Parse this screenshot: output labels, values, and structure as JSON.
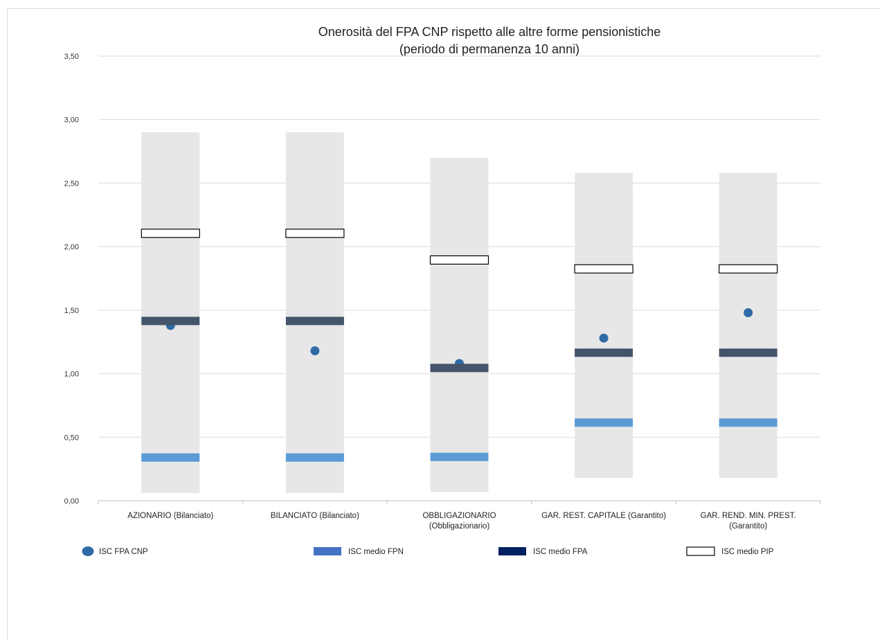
{
  "chart_data": {
    "type": "range-marker",
    "title": "Onerosità del FPA CNP rispetto alle altre forme pensionistiche",
    "subtitle": "(periodo di permanenza 10 anni)",
    "ylim": [
      0,
      3.5
    ],
    "yticks": [
      "0,00",
      "0,50",
      "1,00",
      "1,50",
      "2,00",
      "2,50",
      "3,00",
      "3,50"
    ],
    "grid": true,
    "legend_position": "bottom",
    "categories": [
      [
        "AZIONARIO (Bilanciato)"
      ],
      [
        "BILANCIATO (Bilanciato)"
      ],
      [
        "OBBLIGAZIONARIO",
        "(Obbligazionario)"
      ],
      [
        "GAR. REST. CAPITALE (Garantito)"
      ],
      [
        "GAR. REND. MIN. PREST.",
        "(Garantito)"
      ]
    ],
    "range": {
      "min": [
        0.06,
        0.06,
        0.07,
        0.18,
        0.18
      ],
      "max": [
        2.9,
        2.9,
        2.7,
        2.58,
        2.58
      ]
    },
    "series": [
      {
        "name": "ISC FPA CNP",
        "marker": "dot",
        "color": "#2e6aa6",
        "values": [
          1.38,
          1.18,
          1.08,
          1.28,
          1.48
        ]
      },
      {
        "name": "ISC medio FPN",
        "marker": "band",
        "color": "#5b9bd5",
        "values": [
          0.34,
          0.34,
          0.345,
          0.615,
          0.615
        ]
      },
      {
        "name": "ISC medio FPA",
        "marker": "band",
        "color": "#44546a",
        "values": [
          1.415,
          1.415,
          1.045,
          1.165,
          1.165
        ]
      },
      {
        "name": "ISC medio PIP",
        "marker": "hollow-band",
        "color": "#ffffff",
        "values": [
          2.105,
          2.105,
          1.895,
          1.825,
          1.825
        ]
      }
    ],
    "legend": [
      {
        "label": "ISC FPA CNP",
        "swatch": "dot",
        "color": "#2e6aa6"
      },
      {
        "label": "ISC medio FPN",
        "swatch": "band",
        "color": "#4472c4"
      },
      {
        "label": "ISC medio FPA",
        "swatch": "band",
        "color": "#002060"
      },
      {
        "label": "ISC medio PIP",
        "swatch": "hollow",
        "color": "#ffffff"
      }
    ],
    "colors": {
      "range": "#e7e7e7",
      "grid": "#d9d9d9",
      "axis": "#bfbfbf"
    }
  }
}
